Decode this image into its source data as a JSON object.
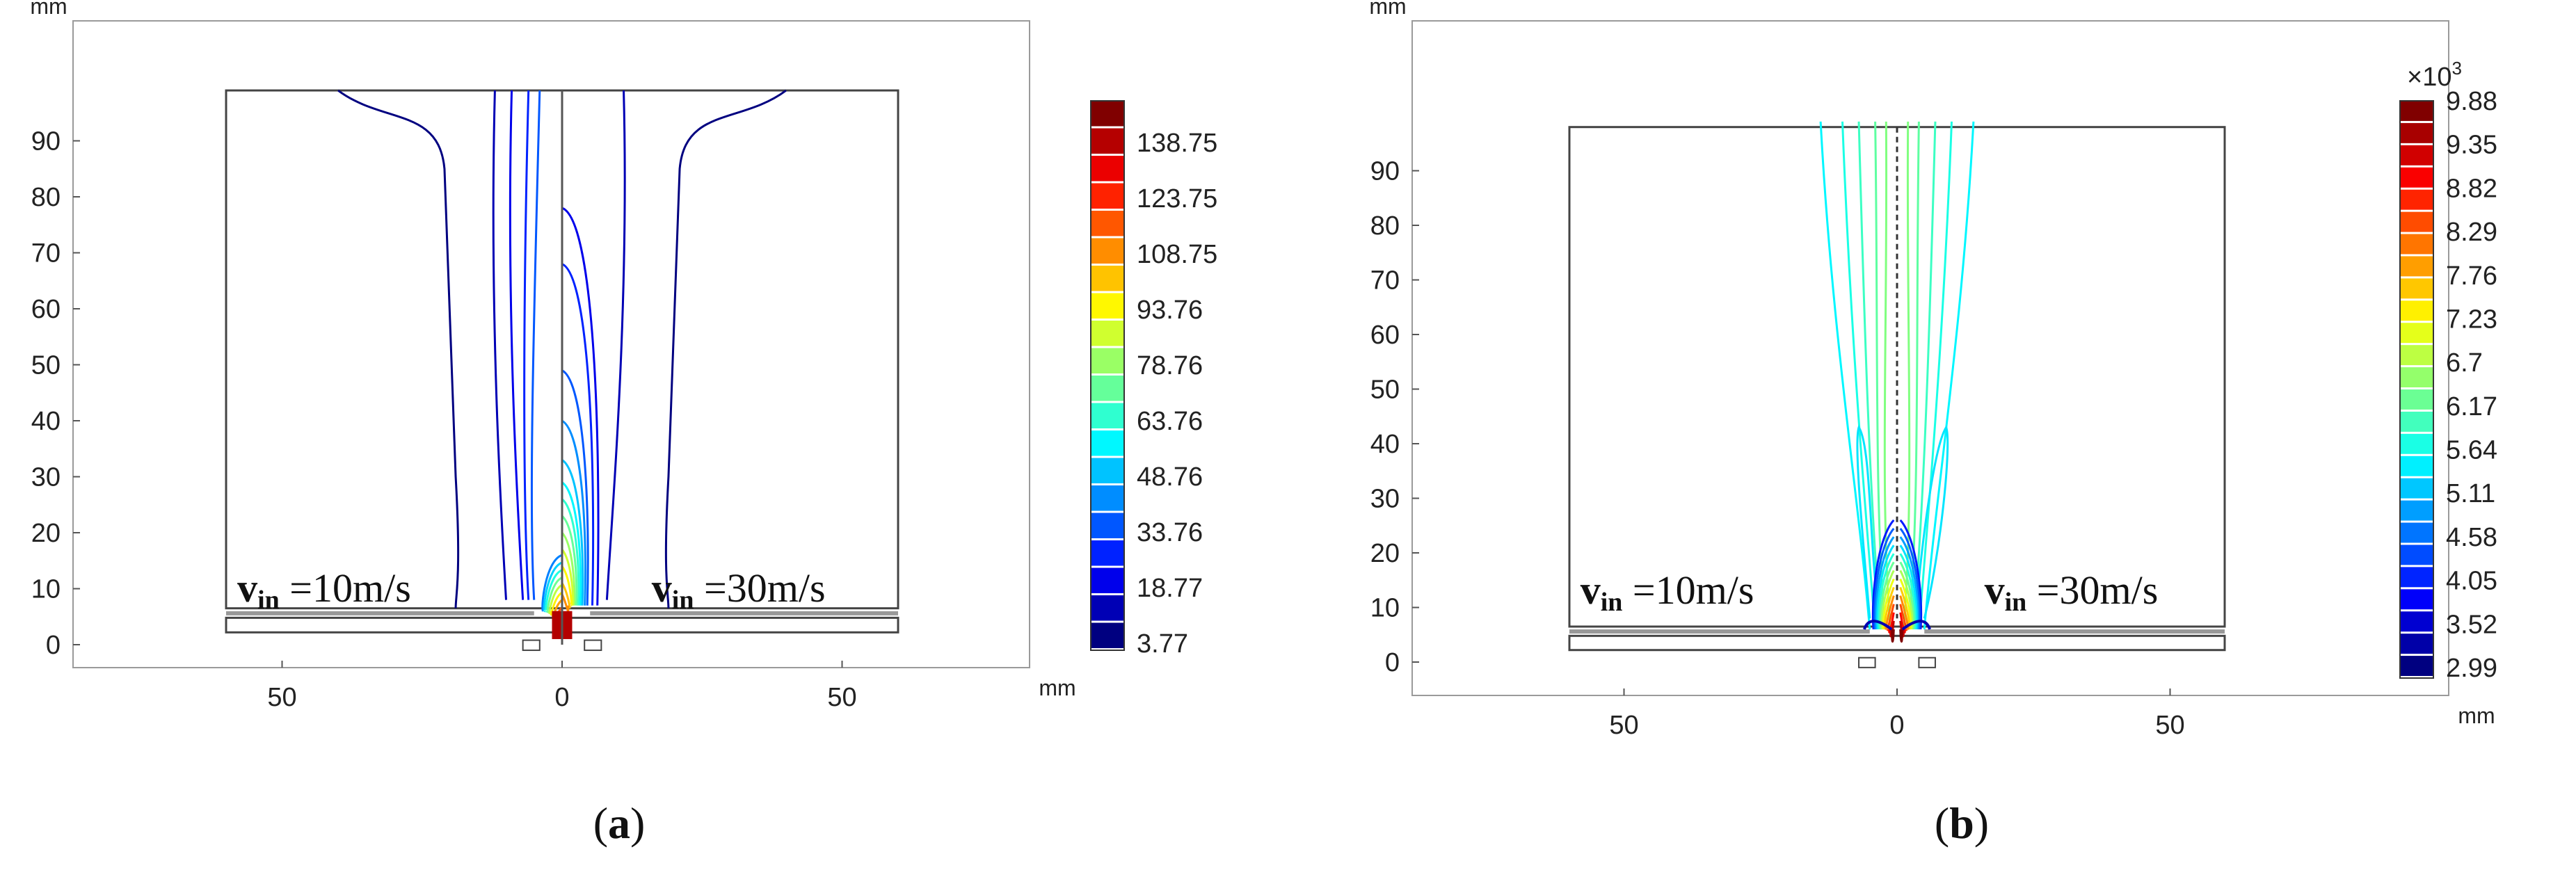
{
  "chart_data": [
    {
      "type": "contour",
      "panel_label": "a",
      "x_unit": "mm",
      "y_unit": "mm",
      "x_ticks": [
        50,
        0,
        50
      ],
      "x_tick_positions": [
        -50,
        0,
        50
      ],
      "y_ticks": [
        0,
        10,
        20,
        30,
        40,
        50,
        60,
        70,
        80,
        90
      ],
      "xlim": [
        -85,
        85
      ],
      "ylim": [
        -3,
        108
      ],
      "annotations": [
        {
          "v": "v",
          "sub": "in",
          "text": " =10m/s",
          "side": "left"
        },
        {
          "v": "v",
          "sub": "in",
          "text": " =30m/s",
          "side": "right"
        }
      ],
      "colorbar": {
        "labels": [
          "138.75",
          "123.75",
          "108.75",
          "93.76",
          "78.76",
          "63.76",
          "48.76",
          "33.76",
          "18.77",
          "3.77"
        ],
        "min": 3.77,
        "max": 146.25,
        "levels": 20,
        "multiplier": ""
      },
      "left_contours": [
        {
          "level": 3.77,
          "top_x": 40,
          "bottom_x": 19,
          "cone": 0
        },
        {
          "level": 11.27,
          "top_x": 12,
          "bottom_x": 10,
          "cone": 0
        },
        {
          "level": 18.77,
          "top_x": 9,
          "bottom_x": 7,
          "cone": 0
        },
        {
          "level": 26.27,
          "top_x": 6,
          "bottom_x": 6,
          "cone": 0
        },
        {
          "level": 33.76,
          "top_x": 4,
          "bottom_x": 5,
          "cone": 0
        }
      ],
      "right_contours": [
        {
          "level": 3.77,
          "top_x": 40,
          "bottom_x": 19
        },
        {
          "level": 11.27,
          "top_x": 11,
          "bottom_x": 8
        },
        {
          "level": 18.77,
          "height": 78,
          "width": 7
        },
        {
          "level": 26.27,
          "height": 68,
          "width": 6
        },
        {
          "level": 33.76,
          "height": 49,
          "width": 5
        },
        {
          "level": 41.26,
          "height": 40,
          "width": 4.5
        },
        {
          "level": 48.76,
          "height": 33,
          "width": 4
        },
        {
          "level": 56.26,
          "height": 29,
          "width": 3.6
        },
        {
          "level": 63.76,
          "height": 26,
          "width": 3.2
        },
        {
          "level": 71.26,
          "height": 23,
          "width": 2.8
        },
        {
          "level": 78.76,
          "height": 20,
          "width": 2.4
        },
        {
          "level": 86.26,
          "height": 17,
          "width": 2.1
        },
        {
          "level": 93.76,
          "height": 14,
          "width": 1.8
        },
        {
          "level": 101.26,
          "height": 11,
          "width": 1.5
        },
        {
          "level": 108.75,
          "height": 9,
          "width": 1.2
        }
      ]
    },
    {
      "type": "contour",
      "panel_label": "b",
      "x_unit": "mm",
      "y_unit": "mm",
      "x_ticks": [
        50,
        0,
        50
      ],
      "x_tick_positions": [
        -50,
        0,
        50
      ],
      "y_ticks": [
        0,
        10,
        20,
        30,
        40,
        50,
        60,
        70,
        80,
        90
      ],
      "xlim": [
        -85,
        85
      ],
      "ylim": [
        -3,
        108
      ],
      "annotations": [
        {
          "v": "v",
          "sub": "in",
          "text": " =10m/s",
          "side": "left"
        },
        {
          "v": "v",
          "sub": "in",
          "text": " =30m/s",
          "side": "right"
        }
      ],
      "colorbar": {
        "labels": [
          "9.88",
          "9.35",
          "8.82",
          "8.29",
          "7.76",
          "7.23",
          "6.7",
          "6.17",
          "5.64",
          "5.11",
          "4.58",
          "4.05",
          "3.52",
          "2.99"
        ],
        "min": 2.99,
        "max": 10.14,
        "levels": 26,
        "multiplier": "×10",
        "multiplier_exp": "3"
      },
      "plumes": [
        {
          "level": 5.11,
          "top_x": 14,
          "bottom_x": 5
        },
        {
          "level": 5.38,
          "top_x": 10,
          "bottom_x": 4
        },
        {
          "level": 5.64,
          "top_x": 7,
          "bottom_x": 3
        },
        {
          "level": 5.91,
          "top_x": 4,
          "bottom_x": 2.2
        },
        {
          "level": 6.17,
          "top_x": 2,
          "bottom_x": 1.2
        }
      ]
    }
  ]
}
